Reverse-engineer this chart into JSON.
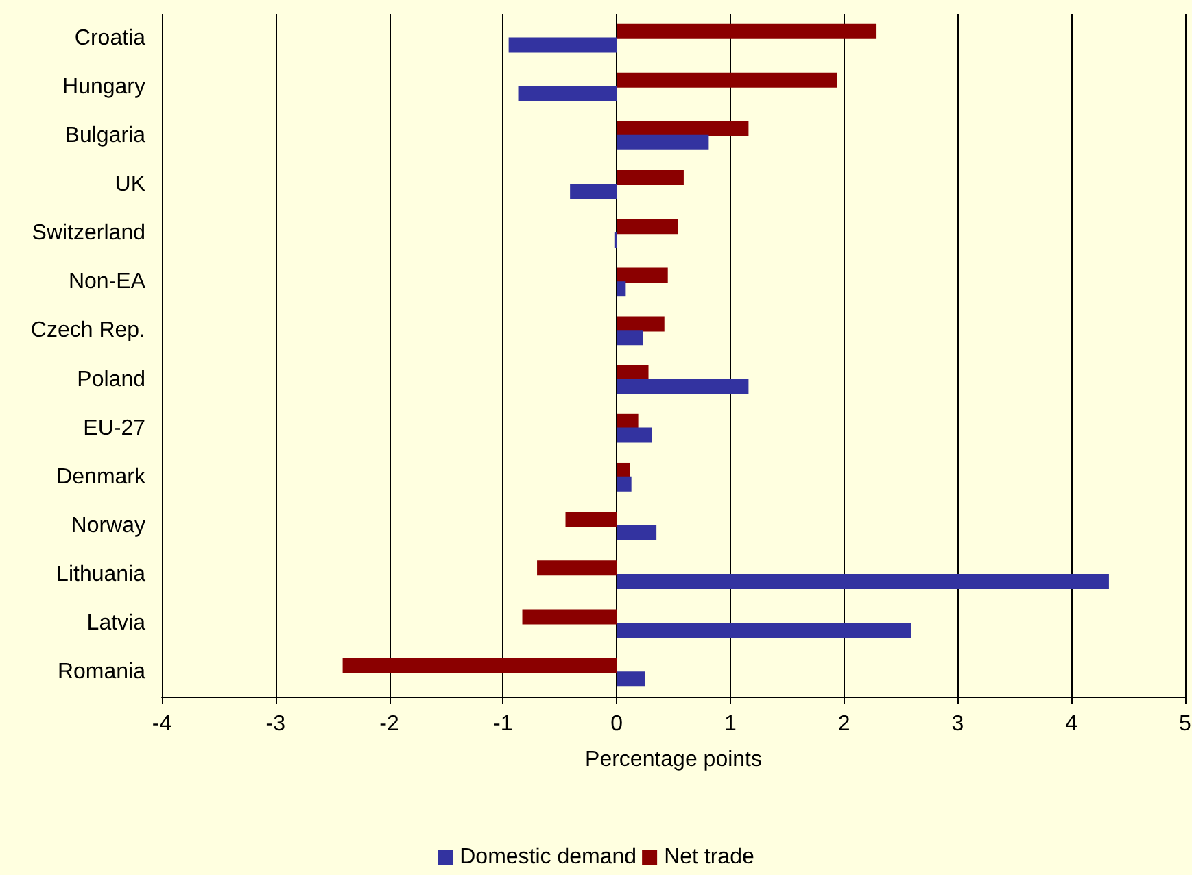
{
  "chart_data": {
    "type": "bar",
    "orientation": "horizontal",
    "xlabel": "Percentage points",
    "categories": [
      "Croatia",
      "Hungary",
      "Bulgaria",
      "UK",
      "Switzerland",
      "Non-EA",
      "Czech Rep.",
      "Poland",
      "EU-27",
      "Denmark",
      "Norway",
      "Lithuania",
      "Latvia",
      "Romania"
    ],
    "series": [
      {
        "name": "Domestic demand",
        "color": "#3333a0",
        "values": [
          -0.95,
          -0.86,
          0.81,
          -0.41,
          -0.02,
          0.08,
          0.23,
          1.16,
          0.31,
          0.13,
          0.35,
          4.33,
          2.59,
          0.25
        ]
      },
      {
        "name": "Net trade",
        "color": "#8b0000",
        "values": [
          2.28,
          1.94,
          1.16,
          0.59,
          0.54,
          0.45,
          0.42,
          0.28,
          0.19,
          0.12,
          -0.45,
          -0.7,
          -0.83,
          -2.41
        ]
      }
    ],
    "xlim": [
      -4,
      5
    ],
    "xticks": [
      -4,
      -3,
      -2,
      -1,
      0,
      1,
      2,
      3,
      4,
      5
    ],
    "grid": "x",
    "legend": "bottom"
  }
}
